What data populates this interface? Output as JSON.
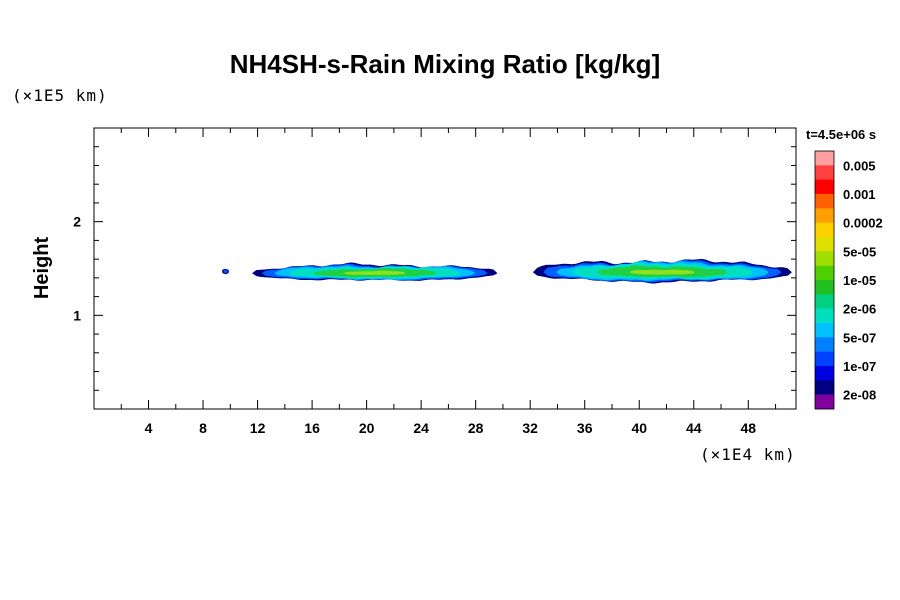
{
  "chart_data": {
    "type": "heatmap",
    "title": "NH4SH-s-Rain Mixing Ratio [kg/kg]",
    "ylabel": "Height",
    "xlabel": "",
    "x_unit": "(×1E4 km)",
    "y_unit": "(×1E5 km)",
    "time_label": "t=4.5e+06 s",
    "xlim": [
      0,
      51.5
    ],
    "ylim": [
      0,
      3.0
    ],
    "x_ticks": [
      4,
      8,
      12,
      16,
      20,
      24,
      28,
      32,
      36,
      40,
      44,
      48
    ],
    "y_ticks": [
      1,
      2
    ],
    "grid": false,
    "colorbar": {
      "labels": [
        "0.005",
        "0.001",
        "0.0002",
        "5e-05",
        "1e-05",
        "2e-06",
        "5e-07",
        "1e-07",
        "2e-08"
      ],
      "colors": [
        "#ffa0a0",
        "#ff4040",
        "#ff0000",
        "#ff6000",
        "#ffa000",
        "#ffd000",
        "#e0e000",
        "#a0e000",
        "#50d000",
        "#20c020",
        "#00d080",
        "#00e0c0",
        "#00c0ff",
        "#0080ff",
        "#0040ff",
        "#0000e0",
        "#000080",
        "#8000a0"
      ]
    },
    "regions": [
      {
        "x_start": 9.4,
        "x_end": 9.9,
        "y_center": 1.47,
        "half_thickness": 0.03,
        "level": "1e-07"
      },
      {
        "x_start": 11.6,
        "x_end": 29.6,
        "y_center": 1.45,
        "half_thickness": 0.09,
        "level": "1e-05"
      },
      {
        "x_start": 32.2,
        "x_end": 51.2,
        "y_center": 1.46,
        "half_thickness": 0.12,
        "level": "1e-05"
      }
    ]
  }
}
